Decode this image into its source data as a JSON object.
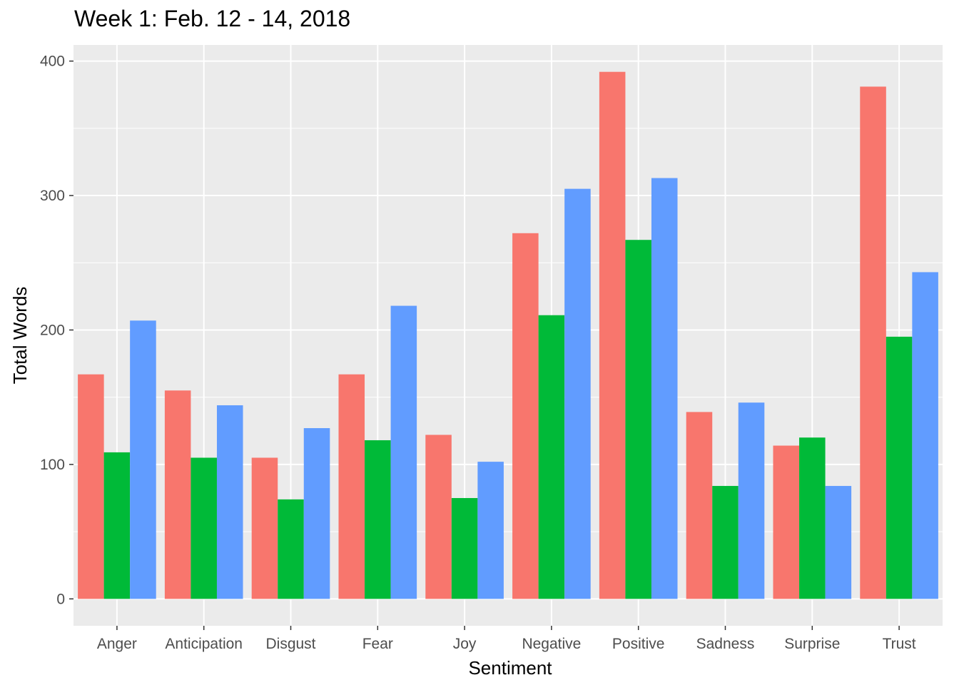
{
  "chart_data": {
    "type": "bar",
    "title": "Week 1: Feb. 12 - 14, 2018",
    "xlabel": "Sentiment",
    "ylabel": "Total Words",
    "categories": [
      "Anger",
      "Anticipation",
      "Disgust",
      "Fear",
      "Joy",
      "Negative",
      "Positive",
      "Sadness",
      "Surprise",
      "Trust"
    ],
    "series": [
      {
        "color": "#F8766D",
        "values": [
          167,
          155,
          105,
          167,
          122,
          272,
          392,
          139,
          114,
          381
        ]
      },
      {
        "color": "#00BA38",
        "values": [
          109,
          105,
          74,
          118,
          75,
          211,
          267,
          84,
          120,
          195
        ]
      },
      {
        "color": "#619CFF",
        "values": [
          207,
          144,
          127,
          218,
          102,
          305,
          313,
          146,
          84,
          243
        ]
      }
    ],
    "y_ticks": [
      0,
      100,
      200,
      300,
      400
    ],
    "ylim": [
      -20,
      412
    ],
    "grid": true,
    "legend": "none"
  }
}
